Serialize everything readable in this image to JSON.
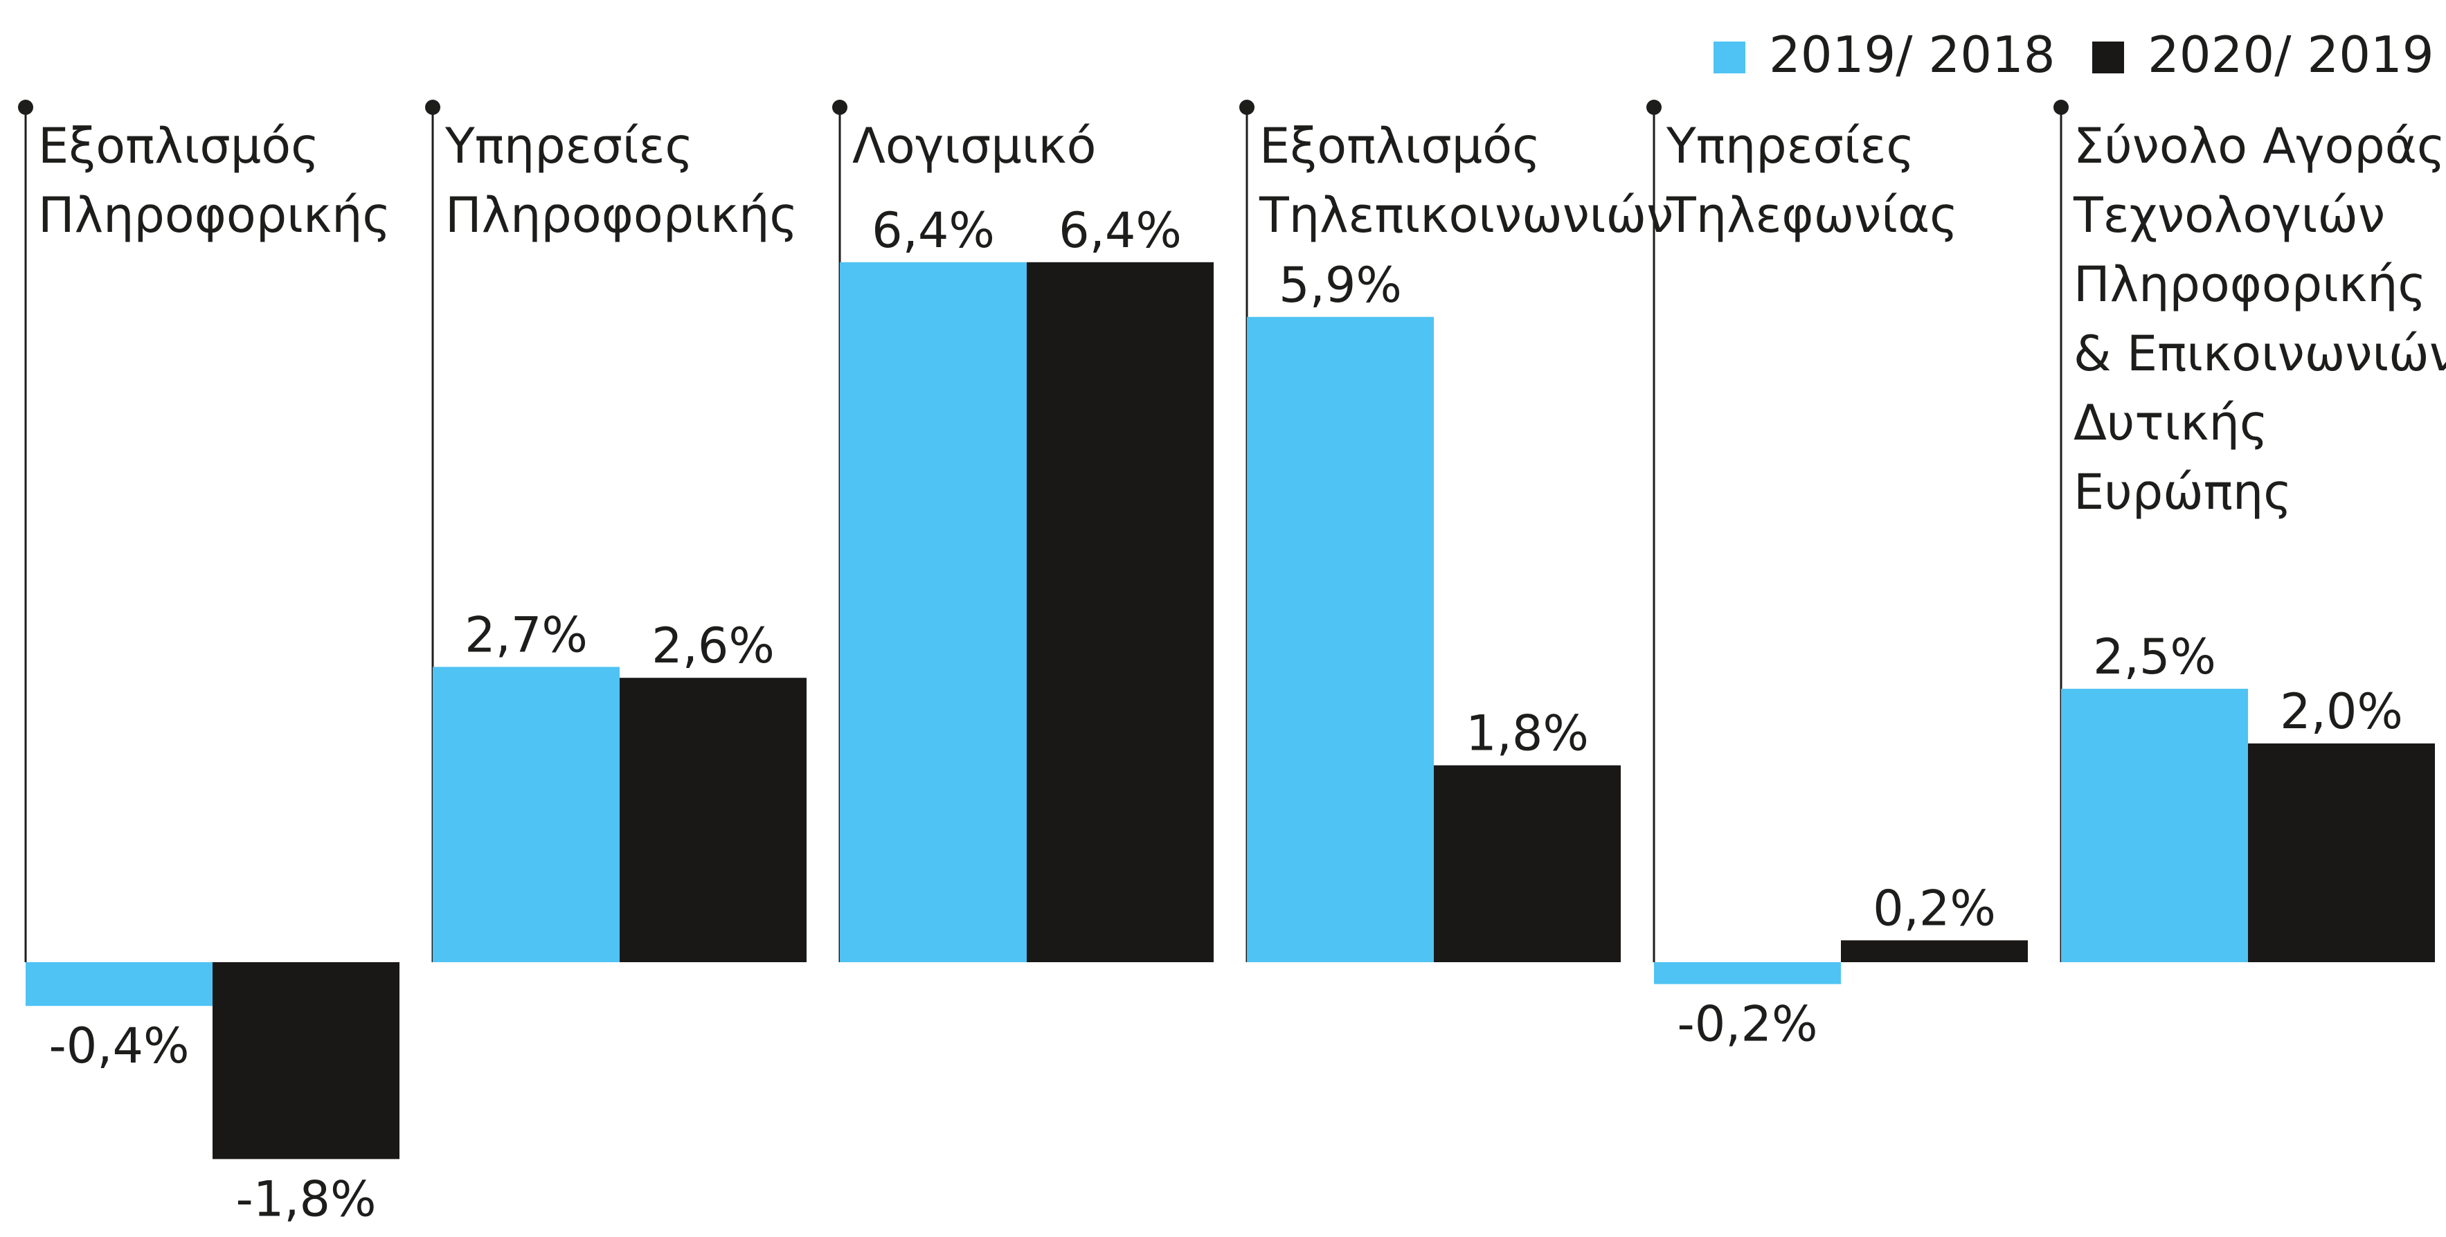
{
  "chart_data": {
    "type": "bar",
    "title": "",
    "xlabel": "",
    "ylabel": "",
    "unit": "%",
    "ylim": [
      -1.8,
      6.4
    ],
    "grid": false,
    "legend_position": "top-right",
    "categories": [
      "Εξοπλισμός\nΠληροφορικής",
      "Υπηρεσίες\nΠληροφορικής",
      "Λογισμικό",
      "Εξοπλισμός\nΤηλεπικοινωνιών",
      "Υπηρεσίες\nΤηλεφωνίας",
      "Σύνολο Αγοράς\nΤεχνολογιών\nΠληροφορικής\n& Επικοινωνιών\nΔυτικής\nΕυρώπης"
    ],
    "series": [
      {
        "name": "2019/ 2018",
        "color": "#4fc3f3",
        "values": [
          -0.4,
          2.7,
          6.4,
          5.9,
          -0.2,
          2.5
        ],
        "labels": [
          "-0,4%",
          "2,7%",
          "6,4%",
          "5,9%",
          "-0,2%",
          "2,5%"
        ]
      },
      {
        "name": "2020/ 2019",
        "color": "#1a1717",
        "values": [
          -1.8,
          2.6,
          6.4,
          1.8,
          0.2,
          2.0
        ],
        "labels": [
          "-1,8%",
          "2,6%",
          "6,4%",
          "1,8%",
          "0,2%",
          "2,0%"
        ]
      }
    ]
  }
}
